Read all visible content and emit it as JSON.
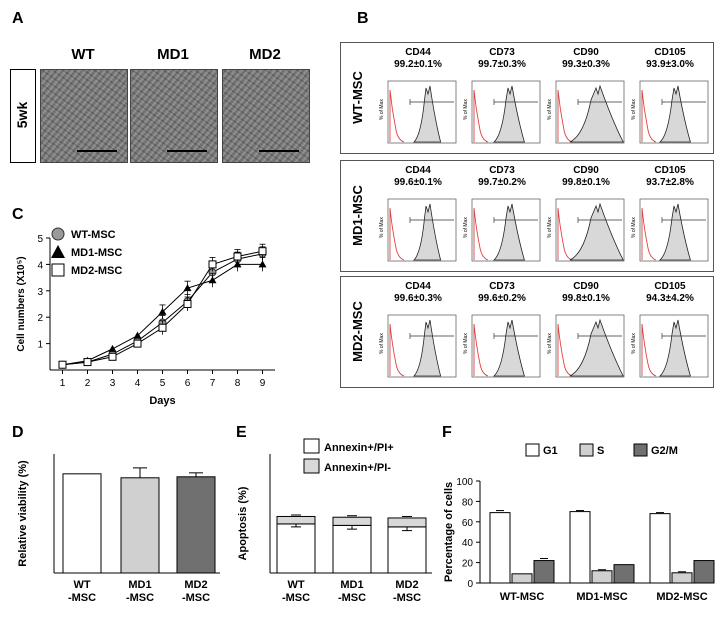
{
  "panels": {
    "A": "A",
    "B": "B",
    "C": "C",
    "D": "D",
    "E": "E",
    "F": "F"
  },
  "panelA": {
    "row_label": "5wk",
    "columns": [
      "WT",
      "MD1",
      "MD2"
    ]
  },
  "panelB": {
    "y_axis_label": "% of Max",
    "rows": [
      {
        "label": "WT-MSC",
        "markers": [
          {
            "name": "CD44",
            "value": "99.2±0.1%"
          },
          {
            "name": "CD73",
            "value": "99.7±0.3%"
          },
          {
            "name": "CD90",
            "value": "99.3±0.3%"
          },
          {
            "name": "CD105",
            "value": "93.9±3.0%"
          }
        ]
      },
      {
        "label": "MD1-MSC",
        "markers": [
          {
            "name": "CD44",
            "value": "99.6±0.1%"
          },
          {
            "name": "CD73",
            "value": "99.7±0.2%"
          },
          {
            "name": "CD90",
            "value": "99.8±0.1%"
          },
          {
            "name": "CD105",
            "value": "93.7±2.8%"
          }
        ]
      },
      {
        "label": "MD2-MSC",
        "markers": [
          {
            "name": "CD44",
            "value": "99.6±0.3%"
          },
          {
            "name": "CD73",
            "value": "99.6±0.2%"
          },
          {
            "name": "CD90",
            "value": "99.8±0.1%"
          },
          {
            "name": "CD105",
            "value": "94.3±4.2%"
          }
        ]
      }
    ]
  },
  "chart_data": [
    {
      "panel": "C",
      "type": "line",
      "xlabel": "Days",
      "ylabel": "Cell numbers (X10⁵)",
      "x": [
        1,
        2,
        3,
        4,
        5,
        6,
        7,
        8,
        9
      ],
      "xlim": [
        0.5,
        9.5
      ],
      "ylim": [
        0,
        5
      ],
      "yticks": [
        1,
        2,
        3,
        4,
        5
      ],
      "series": [
        {
          "name": "WT-MSC",
          "marker": "circle",
          "values": [
            0.2,
            0.3,
            0.6,
            1.1,
            1.8,
            2.6,
            3.7,
            4.2,
            4.4
          ]
        },
        {
          "name": "MD1-MSC",
          "marker": "triangle",
          "values": [
            0.2,
            0.35,
            0.8,
            1.3,
            2.2,
            3.1,
            3.4,
            4.0,
            4.0
          ]
        },
        {
          "name": "MD2-MSC",
          "marker": "square",
          "values": [
            0.2,
            0.3,
            0.5,
            1.0,
            1.6,
            2.5,
            4.0,
            4.3,
            4.5
          ]
        }
      ]
    },
    {
      "panel": "D",
      "type": "bar",
      "ylabel": "Relative viability (%)",
      "categories": [
        "WT\n-MSC",
        "MD1\n-MSC",
        "MD2\n-MSC"
      ],
      "values": [
        100,
        96,
        97
      ],
      "errors": [
        0,
        10,
        4
      ],
      "ylim": [
        0,
        120
      ],
      "colors": [
        "#ffffff",
        "#d0d0d0",
        "#707070"
      ]
    },
    {
      "panel": "E",
      "type": "bar",
      "ylabel": "Apoptosis (%)",
      "categories": [
        "WT\n-MSC",
        "MD1\n-MSC",
        "MD2\n-MSC"
      ],
      "ylim": [
        0,
        16
      ],
      "series": [
        {
          "name": "Annexin+/PI+",
          "values": [
            6.6,
            6.4,
            6.2
          ],
          "errors": [
            0.4,
            0.5,
            0.5
          ],
          "color": "#ffffff"
        },
        {
          "name": "Annexin+/PI-",
          "values": [
            1.0,
            1.1,
            1.2
          ],
          "errors": [
            0.2,
            0.2,
            0.2
          ],
          "color": "#d8d8d8"
        }
      ]
    },
    {
      "panel": "F",
      "type": "bar",
      "ylabel": "Percentage of cells",
      "categories": [
        "WT-MSC",
        "MD1-MSC",
        "MD2-MSC"
      ],
      "yticks": [
        0,
        20,
        40,
        60,
        80,
        100
      ],
      "ylim": [
        0,
        100
      ],
      "series": [
        {
          "name": "G1",
          "values": [
            69,
            70,
            68
          ],
          "errors": [
            2,
            1,
            1
          ],
          "color": "#ffffff"
        },
        {
          "name": "S",
          "values": [
            9,
            12,
            10
          ],
          "errors": [
            0,
            1,
            1
          ],
          "color": "#d0d0d0"
        },
        {
          "name": "G2/M",
          "values": [
            22,
            18,
            22
          ],
          "errors": [
            2,
            0,
            0
          ],
          "color": "#707070"
        }
      ]
    }
  ]
}
